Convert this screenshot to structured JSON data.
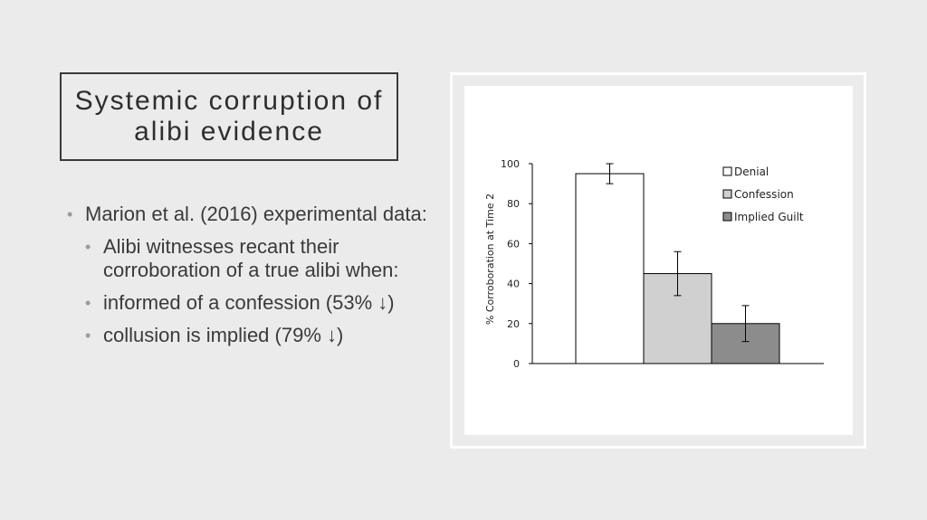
{
  "slide": {
    "title": "Systemic corruption of alibi evidence"
  },
  "bullets": {
    "main": "Marion et al. (2016) experimental data:",
    "sub": [
      "Alibi witnesses recant their corroboration of a true alibi when:",
      "informed of a confession (53% ↓)",
      "collusion is implied (79% ↓)"
    ]
  },
  "chart_data": {
    "type": "bar",
    "categories": [
      "Denial",
      "Confession",
      "Implied Guilt"
    ],
    "values": [
      95,
      45,
      20
    ],
    "errors": [
      5,
      11,
      9
    ],
    "colors": [
      "#ffffff",
      "#d0d0d0",
      "#8c8c8c"
    ],
    "ylabel": "% Corroboration at Time 2",
    "ylim": [
      0,
      100
    ],
    "yticks": [
      0,
      20,
      40,
      60,
      80,
      100
    ],
    "legend": [
      "Denial",
      "Confession",
      "Implied Guilt"
    ],
    "legend_position": "top-right",
    "grid": false
  }
}
